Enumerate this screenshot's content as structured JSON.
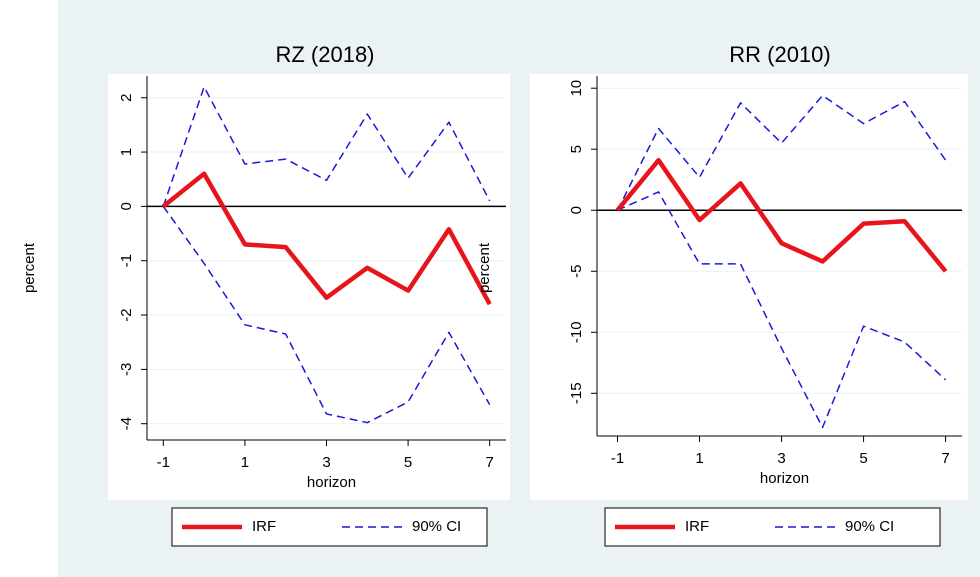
{
  "chart_data": [
    {
      "type": "line",
      "title": "RZ (2018)",
      "y_label": "percent",
      "x_label": "horizon",
      "x": [
        -1,
        0,
        1,
        2,
        3,
        4,
        5,
        6,
        7
      ],
      "xlim": [
        -1.4,
        7.4
      ],
      "xticks": [
        -1,
        1,
        3,
        5,
        7
      ],
      "ylim": [
        -4.3,
        2.4
      ],
      "yticks": [
        -4,
        -3,
        -2,
        -1,
        0,
        1,
        2
      ],
      "grid": true,
      "yline": 0,
      "series": [
        {
          "name": "IRF",
          "color": "#e8141b",
          "style": "solid",
          "values": [
            0,
            0.6,
            -0.7,
            -0.75,
            -1.68,
            -1.13,
            -1.55,
            -0.42,
            -1.8
          ]
        },
        {
          "name": "90% CI",
          "color": "#1a1ad6",
          "style": "dashed",
          "values": [
            0,
            2.2,
            0.78,
            0.87,
            0.48,
            1.7,
            0.52,
            1.55,
            0.1
          ],
          "lower": [
            0,
            -1.05,
            -2.18,
            -2.35,
            -3.82,
            -3.98,
            -3.6,
            -2.32,
            -3.65
          ]
        }
      ]
    },
    {
      "type": "line",
      "title": "RR (2010)",
      "y_label": "percent",
      "x_label": "horizon",
      "x": [
        -1,
        0,
        1,
        2,
        3,
        4,
        5,
        6,
        7
      ],
      "xlim": [
        -1.5,
        7.4
      ],
      "xticks": [
        -1,
        1,
        3,
        5,
        7
      ],
      "ylim": [
        -18.5,
        11
      ],
      "yticks": [
        -15,
        -10,
        -5,
        0,
        5,
        10
      ],
      "grid": true,
      "yline": 0,
      "series": [
        {
          "name": "IRF",
          "color": "#e8141b",
          "style": "solid",
          "values": [
            0,
            4.1,
            -0.8,
            2.2,
            -2.7,
            -4.2,
            -1.1,
            -0.9,
            -5
          ]
        },
        {
          "name": "90% CI",
          "color": "#1a1ad6",
          "style": "dashed",
          "values": [
            0,
            6.7,
            2.7,
            8.8,
            5.5,
            9.4,
            7.1,
            8.9,
            4.1
          ],
          "lower": [
            0,
            1.5,
            -4.4,
            -4.4,
            -11.3,
            -17.8,
            -9.5,
            -10.8,
            -13.9
          ]
        }
      ]
    }
  ]
}
